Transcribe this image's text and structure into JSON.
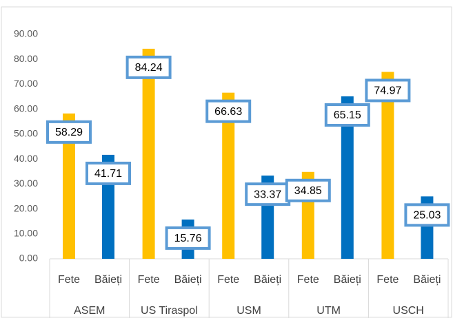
{
  "chart_data": {
    "type": "bar",
    "categories": [
      "ASEM",
      "US Tiraspol",
      "USM",
      "UTM",
      "USCH"
    ],
    "series": [
      {
        "name": "Fete",
        "color": "#ffc000",
        "values": [
          58.29,
          84.24,
          66.63,
          34.85,
          74.97
        ]
      },
      {
        "name": "Băieți",
        "color": "#0070c0",
        "values": [
          41.71,
          15.76,
          33.37,
          65.15,
          25.03
        ]
      }
    ],
    "ylim": [
      0,
      90
    ],
    "yticks": [
      {
        "value": 0,
        "label": "0.00"
      },
      {
        "value": 10,
        "label": "10.00"
      },
      {
        "value": 20,
        "label": "20.00"
      },
      {
        "value": 30,
        "label": "30.00"
      },
      {
        "value": 40,
        "label": "40.00"
      },
      {
        "value": 50,
        "label": "50.00"
      },
      {
        "value": 60,
        "label": "60.00"
      },
      {
        "value": 70,
        "label": "70.00"
      },
      {
        "value": 80,
        "label": "80.00"
      },
      {
        "value": 90,
        "label": "90.00"
      }
    ],
    "label_box_color": "#5b9bd5"
  }
}
